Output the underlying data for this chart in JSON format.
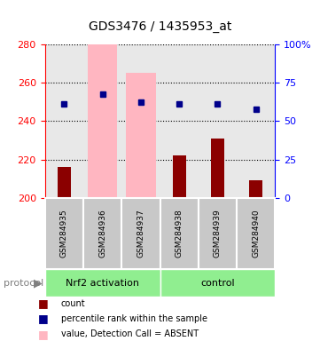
{
  "title": "GDS3476 / 1435953_at",
  "samples": [
    "GSM284935",
    "GSM284936",
    "GSM284937",
    "GSM284938",
    "GSM284939",
    "GSM284940"
  ],
  "groups": [
    "Nrf2 activation",
    "control"
  ],
  "group_membership": [
    0,
    0,
    0,
    1,
    1,
    1
  ],
  "group_colors": [
    "#90EE90",
    "#90EE90"
  ],
  "bar_values": [
    216,
    200,
    200,
    222,
    231,
    209
  ],
  "bar_color": "#8B0000",
  "absent_bar_values": [
    null,
    280,
    265,
    null,
    null,
    null
  ],
  "absent_bar_color": "#FFB6C1",
  "blue_dot_values": [
    249,
    254,
    250,
    249,
    249,
    246
  ],
  "blue_dot_color": "#00008B",
  "absent_rank_values": [
    null,
    254,
    250,
    null,
    null,
    null
  ],
  "absent_rank_color": "#B0C4DE",
  "ylim": [
    200,
    280
  ],
  "yticks": [
    200,
    220,
    240,
    260,
    280
  ],
  "y2lim": [
    0,
    100
  ],
  "y2ticks": [
    0,
    25,
    50,
    75,
    100
  ],
  "y2ticklabels": [
    "0",
    "25",
    "50",
    "75",
    "100%"
  ],
  "plot_bg_color": "#E8E8E8",
  "bar_width": 0.35,
  "x_positions": [
    0,
    1,
    2,
    3,
    4,
    5
  ]
}
